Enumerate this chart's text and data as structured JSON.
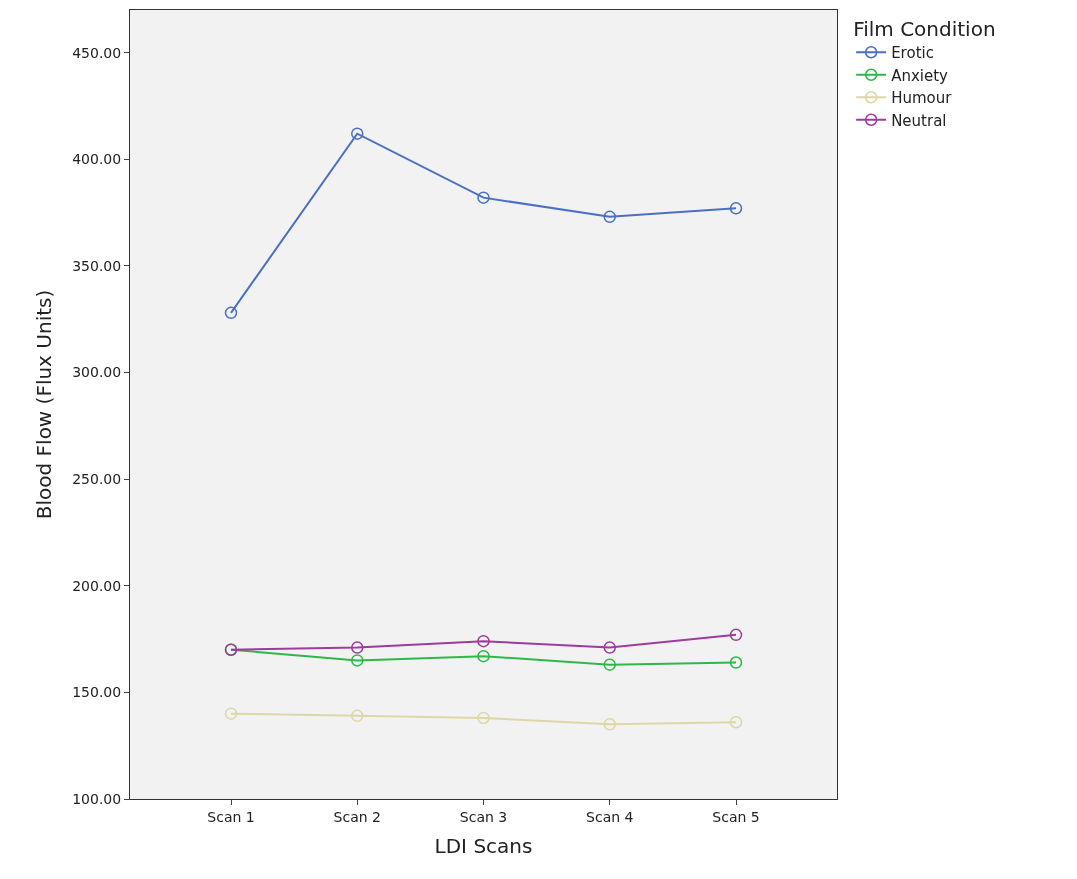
{
  "chart_data": {
    "type": "line",
    "xlabel": "LDI Scans",
    "ylabel": "Blood Flow (Flux Units)",
    "legend_title": "Film Condition",
    "categories": [
      "Scan 1",
      "Scan 2",
      "Scan 3",
      "Scan 4",
      "Scan 5"
    ],
    "series": [
      {
        "name": "Erotic",
        "color": "#4a6fc4",
        "values": [
          328,
          412,
          382,
          373,
          377
        ]
      },
      {
        "name": "Anxiety",
        "color": "#2fb84a",
        "values": [
          170,
          165,
          167,
          163,
          164
        ]
      },
      {
        "name": "Humour",
        "color": "#ddd7a6",
        "values": [
          140,
          139,
          138,
          135,
          136
        ]
      },
      {
        "name": "Neutral",
        "color": "#9c3c9c",
        "values": [
          170,
          171,
          174,
          171,
          177
        ]
      }
    ],
    "ylim": [
      100,
      470
    ],
    "yticks": [
      {
        "value": 100,
        "label": "100.00"
      },
      {
        "value": 150,
        "label": "150.00"
      },
      {
        "value": 200,
        "label": "200.00"
      },
      {
        "value": 250,
        "label": "250.00"
      },
      {
        "value": 300,
        "label": "300.00"
      },
      {
        "value": 350,
        "label": "350.00"
      },
      {
        "value": 400,
        "label": "400.00"
      },
      {
        "value": 450,
        "label": "450.00"
      }
    ],
    "marker": "circle",
    "line_style": "solid",
    "grid": false,
    "legend": "top right"
  }
}
